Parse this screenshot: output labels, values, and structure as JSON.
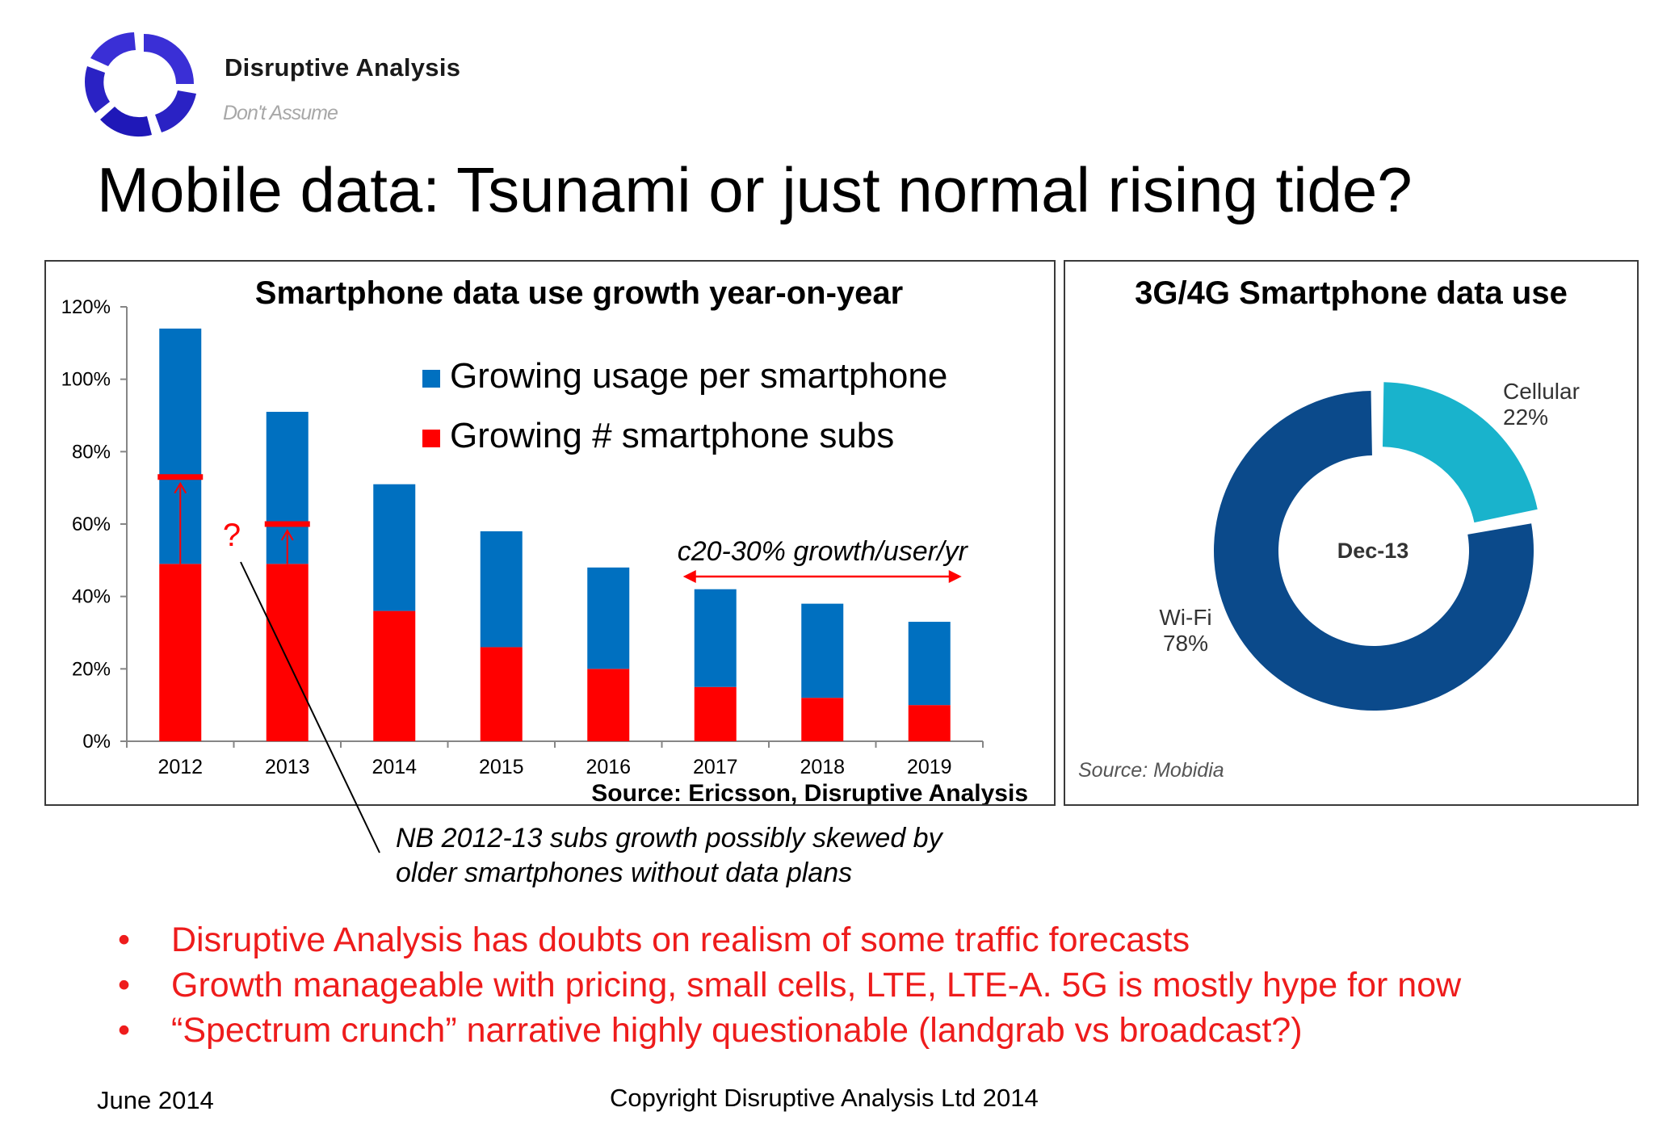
{
  "brand": {
    "name": "Disruptive Analysis",
    "tagline": "Don't Assume"
  },
  "slide_title": "Mobile data: Tsunami or just normal rising tide?",
  "colors": {
    "blue": "#0070c0",
    "red": "#ff0000",
    "wifi": "#0b4a8b",
    "cellular": "#19b3cc",
    "bullet_red": "#ee1c1c"
  },
  "chart_data": [
    {
      "type": "bar",
      "stacked": true,
      "title": "Smartphone data use growth year-on-year",
      "categories": [
        "2012",
        "2013",
        "2014",
        "2015",
        "2016",
        "2017",
        "2018",
        "2019"
      ],
      "series": [
        {
          "name": "Growing # smartphone subs",
          "color": "#ff0000",
          "values": [
            49,
            49,
            36,
            26,
            20,
            15,
            12,
            10
          ]
        },
        {
          "name": "Growing usage per smartphone",
          "color": "#0070c0",
          "values": [
            65,
            42,
            35,
            32,
            28,
            27,
            26,
            23
          ]
        }
      ],
      "ylim": [
        0,
        120
      ],
      "yticks": [
        "0%",
        "20%",
        "40%",
        "60%",
        "80%",
        "100%",
        "120%"
      ],
      "xlabel": "",
      "ylabel": "",
      "legend": "top-right",
      "annotations": {
        "markers": [
          {
            "category": "2012",
            "value": 73
          },
          {
            "category": "2013",
            "value": 60
          }
        ],
        "question": "?",
        "growth_label": "c20-30% growth/user/yr",
        "growth_span": [
          "2017",
          "2019"
        ],
        "source": "Source: Ericsson, Disruptive Analysis",
        "note_line1": "NB 2012-13 subs growth possibly skewed by",
        "note_line2": "older smartphones without data plans"
      }
    },
    {
      "type": "pie",
      "donut": true,
      "title": "3G/4G Smartphone data use",
      "center_label": "Dec-13",
      "slices": [
        {
          "name": "Cellular",
          "value": 22,
          "label": "22%",
          "color": "#19b3cc"
        },
        {
          "name": "Wi-Fi",
          "value": 78,
          "label": "78%",
          "color": "#0b4a8b"
        }
      ],
      "source": "Source: Mobidia"
    }
  ],
  "bullets": [
    "Disruptive Analysis has doubts on realism of some traffic forecasts",
    "Growth manageable with pricing, small cells, LTE, LTE-A. 5G is mostly hype for now",
    "“Spectrum crunch” narrative highly questionable (landgrab vs broadcast?)"
  ],
  "footer": {
    "date": "June 2014",
    "copyright": "Copyright Disruptive Analysis Ltd 2014"
  }
}
